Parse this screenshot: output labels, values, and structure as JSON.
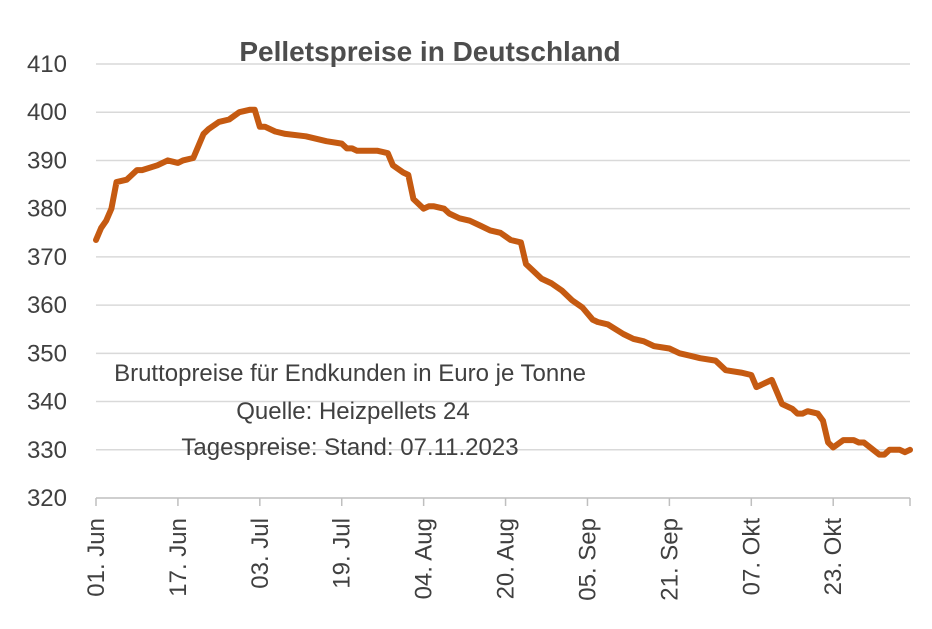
{
  "chart_data": {
    "type": "line",
    "title": "Pelletspreise in Deutschland",
    "subtitle_lines": [
      "Bruttopreise für Endkunden in Euro je Tonne",
      "Quelle: Heizpellets 24",
      "Tagespreise: Stand:  07.11.2023"
    ],
    "xlabel": "",
    "ylabel": "",
    "ylim": [
      320,
      410
    ],
    "yticks": [
      320,
      330,
      340,
      350,
      360,
      370,
      380,
      390,
      400,
      410
    ],
    "xlim": [
      "2023-06-01",
      "2023-11-07"
    ],
    "x_tick_dates": [
      "2023-06-01",
      "2023-06-17",
      "2023-07-03",
      "2023-07-19",
      "2023-08-04",
      "2023-08-20",
      "2023-09-05",
      "2023-09-21",
      "2023-10-07",
      "2023-10-23"
    ],
    "x_tick_labels": [
      "01. Jun",
      "17. Jun",
      "03. Jul",
      "19. Jul",
      "04. Aug",
      "20. Aug",
      "05. Sep",
      "21. Sep",
      "07. Okt",
      "23. Okt"
    ],
    "grid": true,
    "legend": "none",
    "line_color": "#c55a11",
    "series": [
      {
        "x": [
          "2023-06-01",
          "2023-06-02",
          "2023-06-03",
          "2023-06-04",
          "2023-06-05",
          "2023-06-07",
          "2023-06-09",
          "2023-06-10",
          "2023-06-13",
          "2023-06-15",
          "2023-06-17",
          "2023-06-18",
          "2023-06-20",
          "2023-06-22",
          "2023-06-23",
          "2023-06-25",
          "2023-06-27",
          "2023-06-29",
          "2023-07-01",
          "2023-07-02",
          "2023-07-03",
          "2023-07-04",
          "2023-07-06",
          "2023-07-08",
          "2023-07-12",
          "2023-07-16",
          "2023-07-19",
          "2023-07-20",
          "2023-07-21",
          "2023-07-22",
          "2023-07-26",
          "2023-07-28",
          "2023-07-29",
          "2023-07-31",
          "2023-08-01",
          "2023-08-02",
          "2023-08-04",
          "2023-08-05",
          "2023-08-06",
          "2023-08-08",
          "2023-08-09",
          "2023-08-11",
          "2023-08-13",
          "2023-08-15",
          "2023-08-17",
          "2023-08-19",
          "2023-08-21",
          "2023-08-23",
          "2023-08-24",
          "2023-08-25",
          "2023-08-27",
          "2023-08-29",
          "2023-08-31",
          "2023-09-02",
          "2023-09-04",
          "2023-09-06",
          "2023-09-07",
          "2023-09-09",
          "2023-09-12",
          "2023-09-14",
          "2023-09-16",
          "2023-09-18",
          "2023-09-21",
          "2023-09-23",
          "2023-09-25",
          "2023-09-27",
          "2023-09-30",
          "2023-10-02",
          "2023-10-05",
          "2023-10-07",
          "2023-10-08",
          "2023-10-11",
          "2023-10-13",
          "2023-10-15",
          "2023-10-16",
          "2023-10-17",
          "2023-10-18",
          "2023-10-20",
          "2023-10-21",
          "2023-10-22",
          "2023-10-23",
          "2023-10-25",
          "2023-10-26",
          "2023-10-27",
          "2023-10-28",
          "2023-10-29",
          "2023-11-01",
          "2023-11-02",
          "2023-11-03",
          "2023-11-04",
          "2023-11-05",
          "2023-11-06",
          "2023-11-07"
        ],
        "y": [
          373.5,
          376,
          377.5,
          380,
          385.5,
          386,
          388,
          388,
          389,
          390,
          389.5,
          390,
          390.5,
          395.5,
          396.5,
          398,
          398.5,
          400,
          400.5,
          400.5,
          397,
          397,
          396,
          395.5,
          395,
          394,
          393.5,
          392.5,
          392.5,
          392,
          392,
          391.5,
          389,
          387.5,
          387,
          382,
          380,
          380.5,
          380.5,
          380,
          379,
          378,
          377.5,
          376.5,
          375.5,
          375,
          373.5,
          373,
          368.5,
          367.5,
          365.5,
          364.5,
          363,
          361,
          359.5,
          357,
          356.5,
          356,
          354,
          353,
          352.5,
          351.5,
          351,
          350,
          349.5,
          349,
          348.5,
          346.5,
          346,
          345.5,
          343,
          344.5,
          339.5,
          338.5,
          337.5,
          337.5,
          338,
          337.5,
          336,
          331.5,
          330.5,
          332,
          332,
          332,
          331.5,
          331.5,
          329,
          329,
          330,
          330,
          330,
          329.5,
          330
        ]
      }
    ]
  }
}
